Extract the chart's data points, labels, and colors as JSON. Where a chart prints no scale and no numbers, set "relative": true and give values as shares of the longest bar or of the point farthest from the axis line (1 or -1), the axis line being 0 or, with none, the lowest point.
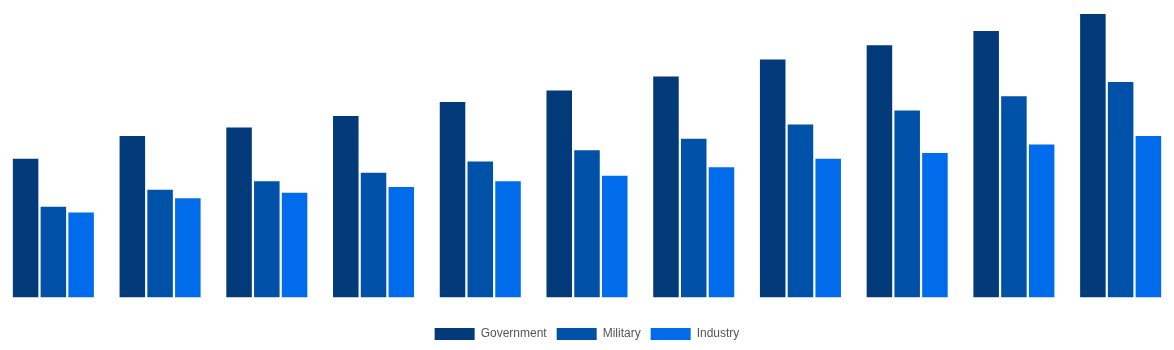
{
  "chart_data": {
    "type": "bar",
    "relative": true,
    "categories": [
      null,
      null,
      null,
      null,
      null,
      null,
      null,
      null,
      null,
      null,
      null
    ],
    "series": [
      {
        "name": "Government",
        "color": "#023a7a",
        "values": [
          0.49,
          0.57,
          0.6,
          0.64,
          0.69,
          0.73,
          0.78,
          0.84,
          0.89,
          0.94,
          1
        ]
      },
      {
        "name": "Military",
        "color": "#0052a8",
        "values": [
          0.32,
          0.38,
          0.41,
          0.44,
          0.48,
          0.52,
          0.56,
          0.61,
          0.66,
          0.71,
          0.76
        ]
      },
      {
        "name": "Industry",
        "color": "#006cec",
        "values": [
          0.3,
          0.35,
          0.37,
          0.39,
          0.41,
          0.43,
          0.46,
          0.49,
          0.51,
          0.54,
          0.57
        ]
      }
    ],
    "grid": false,
    "legend": "bottom"
  }
}
